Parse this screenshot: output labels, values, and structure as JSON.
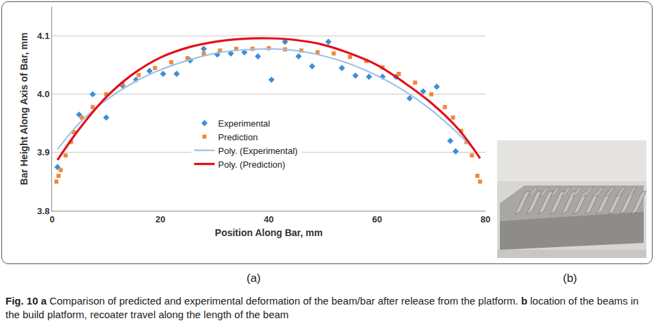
{
  "chart_data": {
    "type": "scatter",
    "x_label": "Position Along Bar, mm",
    "y_label": "Bar Height Along Axis of Bar, mm",
    "xlim": [
      0,
      80
    ],
    "xticks": [
      0,
      20,
      40,
      60,
      80
    ],
    "ylim": [
      3.8,
      4.15
    ],
    "yticks": [
      3.8,
      3.9,
      {
        "value": 4,
        "label": "4.0"
      },
      4.1
    ],
    "grid": true,
    "legend": "center",
    "series": [
      {
        "name": "Experimental",
        "type": "scatter",
        "marker": "diamond",
        "color": "#3d8ed6",
        "x": [
          1,
          5,
          7.5,
          10,
          13,
          15.5,
          18,
          20.5,
          23,
          25.5,
          28,
          30.5,
          33,
          35.5,
          38,
          40.5,
          43,
          45.5,
          48,
          51,
          53.5,
          56,
          58.5,
          61,
          63.5,
          66,
          68.5,
          71,
          73.5,
          74.5
        ],
        "values": [
          3.875,
          3.965,
          4.0,
          3.96,
          4.015,
          4.025,
          4.04,
          4.035,
          4.035,
          4.058,
          4.078,
          4.068,
          4.07,
          4.072,
          4.065,
          4.025,
          4.09,
          4.065,
          4.048,
          4.09,
          4.045,
          4.032,
          4.03,
          4.03,
          4.03,
          3.993,
          4.005,
          4.013,
          3.92,
          3.902
        ]
      },
      {
        "name": "Prediction",
        "type": "scatter",
        "marker": "square",
        "color": "#f0883a",
        "x": [
          0.8,
          1.2,
          1.6,
          2.5,
          3.5,
          4,
          5.5,
          7.5,
          10,
          13,
          16,
          19,
          22,
          25,
          28,
          31,
          34,
          37,
          40,
          43,
          46,
          49,
          52,
          55,
          58,
          61,
          64,
          67,
          70,
          72.5,
          74,
          75.5,
          76.5,
          77.5,
          78.5,
          79
        ],
        "values": [
          3.85,
          3.86,
          3.87,
          3.895,
          3.918,
          3.935,
          3.96,
          3.978,
          4.0,
          4.018,
          4.033,
          4.045,
          4.055,
          4.062,
          4.07,
          4.075,
          4.078,
          4.078,
          4.079,
          4.077,
          4.075,
          4.072,
          4.07,
          4.064,
          4.057,
          4.046,
          4.035,
          4.02,
          4.0,
          3.978,
          3.96,
          3.937,
          3.918,
          3.895,
          3.86,
          3.85
        ]
      },
      {
        "name": "Poly. (Experimental)",
        "type": "line",
        "line_style": "solid",
        "color": "#9cc3e8",
        "x": [
          1,
          5,
          10,
          15,
          20,
          25,
          30,
          35,
          40,
          45,
          50,
          55,
          60,
          65,
          70,
          75,
          78
        ],
        "values": [
          3.905,
          3.95,
          3.99,
          4.02,
          4.042,
          4.058,
          4.07,
          4.076,
          4.078,
          4.075,
          4.066,
          4.052,
          4.032,
          4.006,
          3.973,
          3.932,
          3.905
        ]
      },
      {
        "name": "Poly. (Prediction)",
        "type": "line",
        "line_style": "solid",
        "color": "#e3101a",
        "x": [
          1,
          5,
          10,
          15,
          20,
          25,
          30,
          35,
          40,
          45,
          50,
          55,
          60,
          65,
          70,
          75,
          79
        ],
        "values": [
          3.887,
          3.94,
          3.995,
          4.035,
          4.063,
          4.08,
          4.09,
          4.095,
          4.096,
          4.093,
          4.085,
          4.07,
          4.05,
          4.02,
          3.985,
          3.94,
          3.89
        ]
      }
    ]
  },
  "figure": {
    "panel_labels": [
      "(a)",
      "(b)"
    ],
    "caption": {
      "label": "Fig. 10",
      "parts": [
        {
          "letter": "a",
          "text": "Comparison of predicted and experimental deformation of the beam/bar after release from the platform."
        },
        {
          "letter": "b",
          "text": "location of the beams in the build platform, recoater travel along the length of the beam"
        }
      ]
    }
  }
}
